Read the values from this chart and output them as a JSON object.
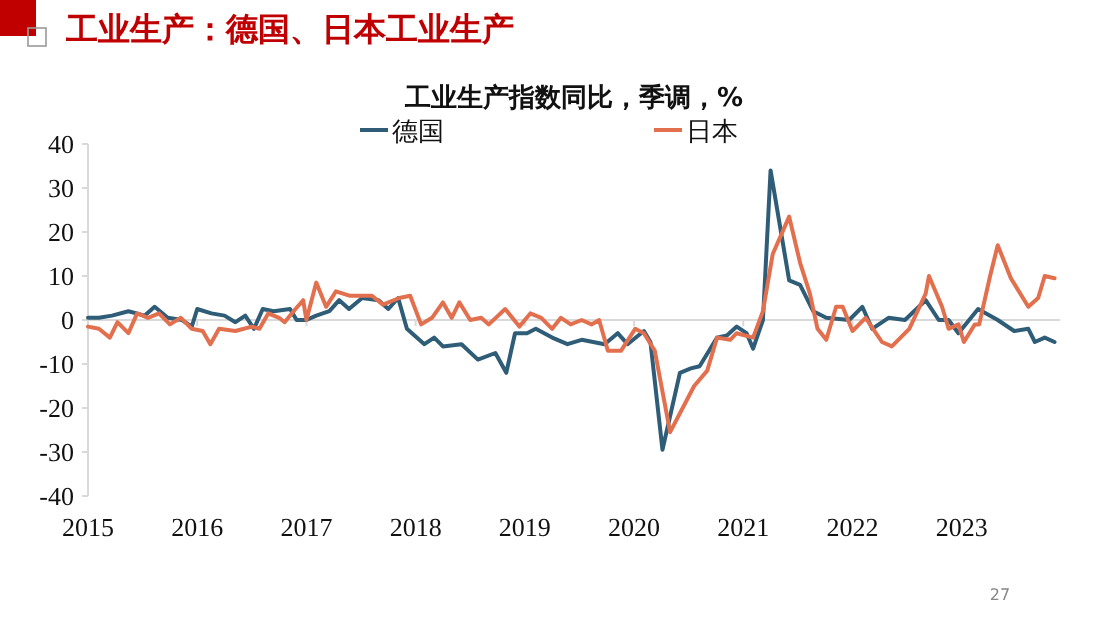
{
  "chart_data": {
    "type": "line",
    "title": "工业生产：德国、日本工业生产",
    "subtitle": "工业生产指数同比，季调，%",
    "annotations": [
      "27"
    ],
    "xlim": [
      2015,
      2023.9
    ],
    "xticks": [
      2015,
      2016,
      2017,
      2018,
      2019,
      2020,
      2021,
      2022,
      2023
    ],
    "ylim": [
      -40,
      40
    ],
    "yticks": [
      -40,
      -30,
      -20,
      -10,
      0,
      10,
      20,
      30,
      40
    ],
    "grid": false,
    "legend": "top",
    "ref_lines": [
      {
        "axis": "y",
        "value": 0,
        "color": "#d9d9d9"
      }
    ],
    "series": [
      {
        "name": "德国",
        "color": "#2f5d78",
        "x": [
          2015.0,
          2015.1,
          2015.22,
          2015.37,
          2015.52,
          2015.61,
          2015.73,
          2015.86,
          2015.95,
          2016.0,
          2016.13,
          2016.25,
          2016.35,
          2016.44,
          2016.52,
          2016.6,
          2016.7,
          2016.85,
          2016.91,
          2017.0,
          2017.09,
          2017.21,
          2017.3,
          2017.39,
          2017.51,
          2017.66,
          2017.75,
          2017.84,
          2017.92,
          2018.08,
          2018.17,
          2018.25,
          2018.42,
          2018.57,
          2018.73,
          2018.83,
          2018.91,
          2019.02,
          2019.1,
          2019.25,
          2019.39,
          2019.52,
          2019.73,
          2019.85,
          2019.94,
          2020.09,
          2020.15,
          2020.26,
          2020.42,
          2020.52,
          2020.6,
          2020.76,
          2020.85,
          2020.94,
          2021.03,
          2021.09,
          2021.18,
          2021.25,
          2021.42,
          2021.52,
          2021.64,
          2021.76,
          2021.97,
          2022.09,
          2022.18,
          2022.33,
          2022.48,
          2022.67,
          2022.79,
          2022.88,
          2022.97,
          2023.15,
          2023.33,
          2023.48,
          2023.61,
          2023.67,
          2023.76,
          2023.85
        ],
        "values": [
          0.5,
          0.5,
          1,
          2,
          1,
          3,
          0.5,
          0,
          -1.5,
          2.5,
          1.5,
          1,
          -0.5,
          1,
          -2,
          2.5,
          2,
          2.5,
          0,
          0,
          1,
          2,
          4.5,
          2.5,
          5,
          4.5,
          2.5,
          5,
          -2,
          -5.5,
          -4,
          -6,
          -5.5,
          -9,
          -7.5,
          -12,
          -3,
          -3,
          -2,
          -4,
          -5.5,
          -4.5,
          -5.5,
          -3,
          -5.5,
          -2.5,
          -5,
          -29.5,
          -12,
          -11,
          -10.5,
          -4,
          -3.5,
          -1.5,
          -3,
          -6.5,
          0,
          34,
          9,
          8,
          2,
          0.5,
          0,
          3,
          -2,
          0.5,
          0,
          4.5,
          0,
          0,
          -3,
          2.5,
          0,
          -2.5,
          -2,
          -5,
          -4,
          -5
        ]
      },
      {
        "name": "日本",
        "color": "#e2704e",
        "x": [
          2015.0,
          2015.1,
          2015.2,
          2015.27,
          2015.37,
          2015.45,
          2015.55,
          2015.65,
          2015.75,
          2015.85,
          2015.95,
          2016.05,
          2016.12,
          2016.2,
          2016.35,
          2016.5,
          2016.57,
          2016.65,
          2016.75,
          2016.8,
          2016.9,
          2016.97,
          2017.0,
          2017.09,
          2017.18,
          2017.27,
          2017.4,
          2017.6,
          2017.7,
          2017.85,
          2017.95,
          2018.05,
          2018.15,
          2018.25,
          2018.33,
          2018.4,
          2018.5,
          2018.6,
          2018.67,
          2018.82,
          2018.95,
          2019.05,
          2019.15,
          2019.25,
          2019.33,
          2019.42,
          2019.52,
          2019.61,
          2019.68,
          2019.76,
          2019.88,
          2020.01,
          2020.09,
          2020.19,
          2020.33,
          2020.55,
          2020.67,
          2020.76,
          2020.88,
          2020.94,
          2021.09,
          2021.18,
          2021.27,
          2021.42,
          2021.52,
          2021.61,
          2021.68,
          2021.76,
          2021.85,
          2021.91,
          2022.0,
          2022.12,
          2022.27,
          2022.36,
          2022.52,
          2022.67,
          2022.7,
          2022.82,
          2022.88,
          2022.97,
          2023.02,
          2023.12,
          2023.16,
          2023.26,
          2023.33,
          2023.45,
          2023.61,
          2023.7,
          2023.76,
          2023.85
        ],
        "values": [
          -1.5,
          -2,
          -4,
          -0.5,
          -3,
          1.5,
          0.5,
          1.5,
          -1,
          0.5,
          -2,
          -2.5,
          -5.5,
          -2,
          -2.5,
          -1.5,
          -2,
          1.5,
          0.5,
          -0.5,
          2.5,
          4.5,
          0,
          8.5,
          3,
          6.5,
          5.5,
          5.5,
          3.5,
          5,
          5.5,
          -1,
          0.5,
          4,
          0.5,
          4,
          0,
          0.5,
          -1,
          2.5,
          -1.5,
          1.5,
          0.5,
          -2,
          0.5,
          -1,
          0,
          -1,
          0,
          -7,
          -7,
          -2,
          -3,
          -7,
          -25.5,
          -15,
          -11.5,
          -4,
          -4.5,
          -3,
          -4,
          2,
          15,
          23.5,
          13,
          6,
          -2,
          -4.5,
          3,
          3,
          -2.5,
          0.5,
          -5,
          -6,
          -2,
          6,
          10,
          3,
          -2,
          -1,
          -5,
          -1,
          -1,
          10,
          17,
          9.5,
          3,
          5,
          10,
          9.5
        ]
      }
    ]
  }
}
